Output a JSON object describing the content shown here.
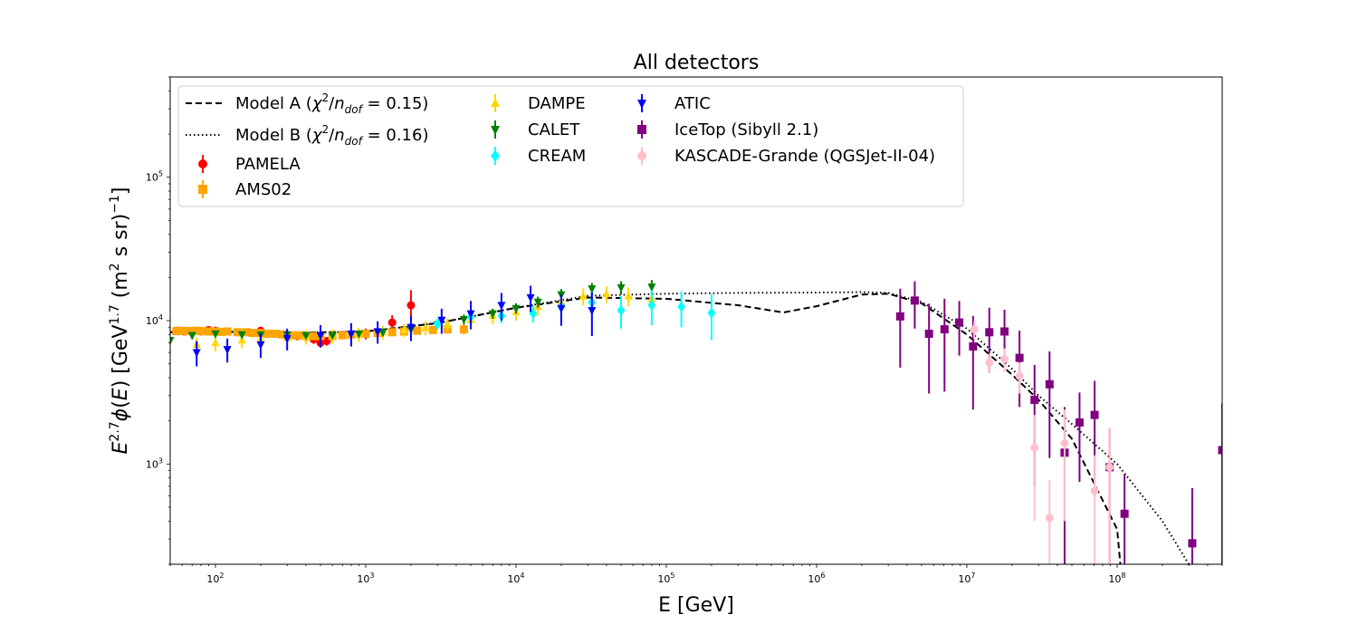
{
  "chart_data": {
    "type": "scatter",
    "title": "All detectors",
    "xlabel": "E [GeV]",
    "ylabel": "E^{2.7}ϕ(E) [GeV^{1.7} (m^2 s sr)^{-1}]",
    "xscale": "log",
    "yscale": "log",
    "xlim": [
      50,
      500000000
    ],
    "ylim": [
      200,
      500000
    ],
    "x_tick_labels": [
      {
        "value": 100,
        "mantissa": "10",
        "exponent": "2"
      },
      {
        "value": 1000,
        "mantissa": "10",
        "exponent": "3"
      },
      {
        "value": 10000,
        "mantissa": "10",
        "exponent": "4"
      },
      {
        "value": 100000,
        "mantissa": "10",
        "exponent": "5"
      },
      {
        "value": 1000000,
        "mantissa": "10",
        "exponent": "6"
      },
      {
        "value": 10000000,
        "mantissa": "10",
        "exponent": "7"
      },
      {
        "value": 100000000,
        "mantissa": "10",
        "exponent": "8"
      }
    ],
    "y_tick_labels": [
      {
        "value": 1000,
        "mantissa": "10",
        "exponent": "3"
      },
      {
        "value": 10000,
        "mantissa": "10",
        "exponent": "4"
      },
      {
        "value": 100000,
        "mantissa": "10",
        "exponent": "5"
      }
    ],
    "legend_position": "upper-left",
    "models": [
      {
        "name": "Model A",
        "label": "Model A (χ²/n_dof = 0.15)",
        "label_main": "Model A (",
        "label_chi": "χ",
        "label_sup": "2",
        "label_slash": "/",
        "label_n": "n",
        "label_sub": "dof",
        "label_val": " = 0.15)",
        "style": "dashed",
        "points": [
          [
            50,
            8300
          ],
          [
            100,
            8400
          ],
          [
            300,
            8200
          ],
          [
            1000,
            8400
          ],
          [
            3000,
            9600
          ],
          [
            10000,
            12300
          ],
          [
            30000,
            14500
          ],
          [
            100000,
            14200
          ],
          [
            300000,
            12800
          ],
          [
            600000,
            11400
          ],
          [
            1000000,
            12600
          ],
          [
            2000000,
            15200
          ],
          [
            3000000,
            15400
          ],
          [
            5000000,
            13200
          ],
          [
            10000000,
            8000
          ],
          [
            20000000,
            4200
          ],
          [
            30000000,
            2800
          ],
          [
            50000000,
            1500
          ],
          [
            100000000,
            350
          ],
          [
            105000000,
            200
          ]
        ]
      },
      {
        "name": "Model B",
        "label": "Model B (χ²/n_dof = 0.16)",
        "label_main": "Model B (",
        "label_chi": "χ",
        "label_sup": "2",
        "label_slash": "/",
        "label_n": "n",
        "label_sub": "dof",
        "label_val": " = 0.16)",
        "style": "dotted",
        "points": [
          [
            50,
            8300
          ],
          [
            100,
            8400
          ],
          [
            300,
            8200
          ],
          [
            1000,
            8400
          ],
          [
            3000,
            9600
          ],
          [
            10000,
            12300
          ],
          [
            30000,
            14900
          ],
          [
            100000,
            15400
          ],
          [
            300000,
            15600
          ],
          [
            1000000,
            15700
          ],
          [
            2000000,
            15800
          ],
          [
            3000000,
            15600
          ],
          [
            5000000,
            13500
          ],
          [
            10000000,
            8800
          ],
          [
            20000000,
            4600
          ],
          [
            30000000,
            3000
          ],
          [
            50000000,
            1900
          ],
          [
            100000000,
            1000
          ],
          [
            200000000,
            400
          ],
          [
            300000000,
            200
          ]
        ]
      }
    ],
    "series": [
      {
        "name": "PAMELA",
        "color": "#ff0000",
        "marker": "circle",
        "points": [
          [
            55,
            8500,
            300
          ],
          [
            62,
            8400,
            300
          ],
          [
            70,
            8450,
            300
          ],
          [
            80,
            8400,
            300
          ],
          [
            90,
            8600,
            300
          ],
          [
            100,
            8500,
            300
          ],
          [
            120,
            8400,
            300
          ],
          [
            140,
            8300,
            300
          ],
          [
            170,
            8250,
            300
          ],
          [
            200,
            8500,
            350
          ],
          [
            250,
            8100,
            350
          ],
          [
            300,
            7900,
            400
          ],
          [
            350,
            7800,
            400
          ],
          [
            400,
            7700,
            400
          ],
          [
            450,
            7400,
            500
          ],
          [
            500,
            7000,
            500
          ],
          [
            550,
            7200,
            500
          ],
          [
            1000,
            8100,
            700
          ],
          [
            1500,
            9700,
            1200
          ],
          [
            2000,
            12800,
            3500
          ]
        ]
      },
      {
        "name": "AMS02",
        "color": "#ffa500",
        "marker": "square",
        "points": [
          [
            55,
            8450,
            200
          ],
          [
            60,
            8500,
            200
          ],
          [
            65,
            8450,
            200
          ],
          [
            70,
            8450,
            200
          ],
          [
            75,
            8500,
            200
          ],
          [
            80,
            8450,
            200
          ],
          [
            90,
            8400,
            200
          ],
          [
            100,
            8400,
            200
          ],
          [
            110,
            8350,
            200
          ],
          [
            120,
            8400,
            200
          ],
          [
            140,
            8300,
            200
          ],
          [
            160,
            8300,
            200
          ],
          [
            180,
            8200,
            200
          ],
          [
            200,
            8200,
            200
          ],
          [
            220,
            8100,
            200
          ],
          [
            250,
            8100,
            200
          ],
          [
            280,
            8000,
            200
          ],
          [
            320,
            7900,
            250
          ],
          [
            360,
            7900,
            250
          ],
          [
            400,
            7800,
            250
          ],
          [
            450,
            7800,
            250
          ],
          [
            500,
            7800,
            250
          ],
          [
            600,
            7800,
            300
          ],
          [
            700,
            7900,
            300
          ],
          [
            800,
            8000,
            300
          ],
          [
            1000,
            8100,
            300
          ],
          [
            1200,
            8200,
            300
          ],
          [
            1500,
            8300,
            400
          ],
          [
            1800,
            8400,
            400
          ],
          [
            2200,
            8500,
            500
          ],
          [
            2800,
            8600,
            500
          ],
          [
            3500,
            8700,
            600
          ],
          [
            4500,
            8700,
            700
          ]
        ]
      },
      {
        "name": "DAMPE",
        "color": "#ffd700",
        "marker": "triangle-up",
        "points": [
          [
            75,
            6800,
            800
          ],
          [
            100,
            7000,
            900
          ],
          [
            150,
            7300,
            900
          ],
          [
            200,
            7400,
            900
          ],
          [
            300,
            7600,
            900
          ],
          [
            400,
            7700,
            900
          ],
          [
            600,
            7800,
            900
          ],
          [
            900,
            8000,
            900
          ],
          [
            1300,
            8300,
            900
          ],
          [
            1800,
            8600,
            900
          ],
          [
            2500,
            8900,
            1000
          ],
          [
            3500,
            9400,
            1000
          ],
          [
            5000,
            10100,
            1200
          ],
          [
            7000,
            10800,
            1300
          ],
          [
            10000,
            11500,
            1500
          ],
          [
            14000,
            12500,
            1700
          ],
          [
            20000,
            13600,
            1900
          ],
          [
            28000,
            14800,
            2000
          ],
          [
            40000,
            15300,
            2000
          ],
          [
            56000,
            14800,
            2200
          ],
          [
            80000,
            14200,
            2400
          ]
        ]
      },
      {
        "name": "CALET",
        "color": "#008000",
        "marker": "triangle-down",
        "points": [
          [
            50,
            7300,
            400
          ],
          [
            70,
            7900,
            400
          ],
          [
            100,
            8100,
            400
          ],
          [
            150,
            8000,
            400
          ],
          [
            200,
            8000,
            400
          ],
          [
            300,
            8000,
            400
          ],
          [
            400,
            7900,
            400
          ],
          [
            600,
            7900,
            400
          ],
          [
            900,
            8100,
            400
          ],
          [
            1300,
            8300,
            500
          ],
          [
            2000,
            8700,
            600
          ],
          [
            3000,
            9400,
            700
          ],
          [
            4500,
            10200,
            800
          ],
          [
            7000,
            11200,
            900
          ],
          [
            10000,
            12200,
            1000
          ],
          [
            14000,
            13500,
            1200
          ],
          [
            20000,
            15200,
            1400
          ],
          [
            32000,
            16700,
            1600
          ],
          [
            50000,
            17000,
            1800
          ],
          [
            80000,
            17200,
            2000
          ]
        ]
      },
      {
        "name": "CREAM",
        "color": "#00ffff",
        "marker": "diamond",
        "points": [
          [
            3000,
            9500,
            800
          ],
          [
            5000,
            10600,
            900
          ],
          [
            8000,
            10800,
            1200
          ],
          [
            13000,
            11200,
            1500
          ],
          [
            20000,
            12500,
            2000
          ],
          [
            32000,
            13400,
            2500
          ],
          [
            50000,
            11800,
            3000
          ],
          [
            80000,
            12800,
            3500
          ],
          [
            126000,
            12500,
            3500
          ],
          [
            200000,
            11300,
            4000
          ]
        ]
      },
      {
        "name": "ATIC",
        "color": "#0000ff",
        "marker": "triangle-down",
        "points": [
          [
            75,
            6000,
            1200
          ],
          [
            120,
            6300,
            1200
          ],
          [
            200,
            6800,
            1300
          ],
          [
            300,
            7500,
            1300
          ],
          [
            500,
            7900,
            1400
          ],
          [
            800,
            8100,
            1500
          ],
          [
            1200,
            8400,
            1500
          ],
          [
            2000,
            9000,
            1800
          ],
          [
            3200,
            10100,
            2000
          ],
          [
            5000,
            11200,
            2500
          ],
          [
            8000,
            12800,
            2800
          ],
          [
            12500,
            14500,
            3000
          ],
          [
            20000,
            12200,
            3000
          ],
          [
            32000,
            11800,
            4000
          ]
        ]
      },
      {
        "name": "IceTop (Sibyll 2.1)",
        "color": "#800080",
        "marker": "square",
        "points": [
          [
            3600000,
            10700,
            6000
          ],
          [
            4500000,
            13800,
            5000
          ],
          [
            5600000,
            8100,
            5000
          ],
          [
            7100000,
            8700,
            5500
          ],
          [
            8900000,
            9700,
            4000
          ],
          [
            11000000,
            6600,
            4200
          ],
          [
            14100000,
            8300,
            4000
          ],
          [
            17800000,
            8400,
            3500
          ],
          [
            22400000,
            5500,
            3000
          ],
          [
            28200000,
            2800,
            2100
          ],
          [
            35500000,
            3600,
            2500
          ],
          [
            44700000,
            1200,
            1300
          ],
          [
            56200000,
            1950,
            1200
          ],
          [
            70800000,
            2200,
            1600
          ],
          [
            89100000,
            950,
            800
          ],
          [
            112000000,
            450,
            400
          ],
          [
            316000000,
            280,
            400
          ],
          [
            500000000,
            1250,
            1400
          ]
        ]
      },
      {
        "name": "KASCADE-Grande (QGSJet-II-04)",
        "color": "#ffc0cb",
        "marker": "circle",
        "points": [
          [
            11200000,
            8700,
            1200
          ],
          [
            14100000,
            5100,
            800
          ],
          [
            17800000,
            5400,
            1000
          ],
          [
            22400000,
            4100,
            1000
          ],
          [
            28200000,
            1300,
            900
          ],
          [
            35500000,
            420,
            350
          ],
          [
            44700000,
            1400,
            1000
          ],
          [
            70800000,
            650,
            500
          ],
          [
            89100000,
            950,
            850
          ]
        ]
      }
    ]
  }
}
